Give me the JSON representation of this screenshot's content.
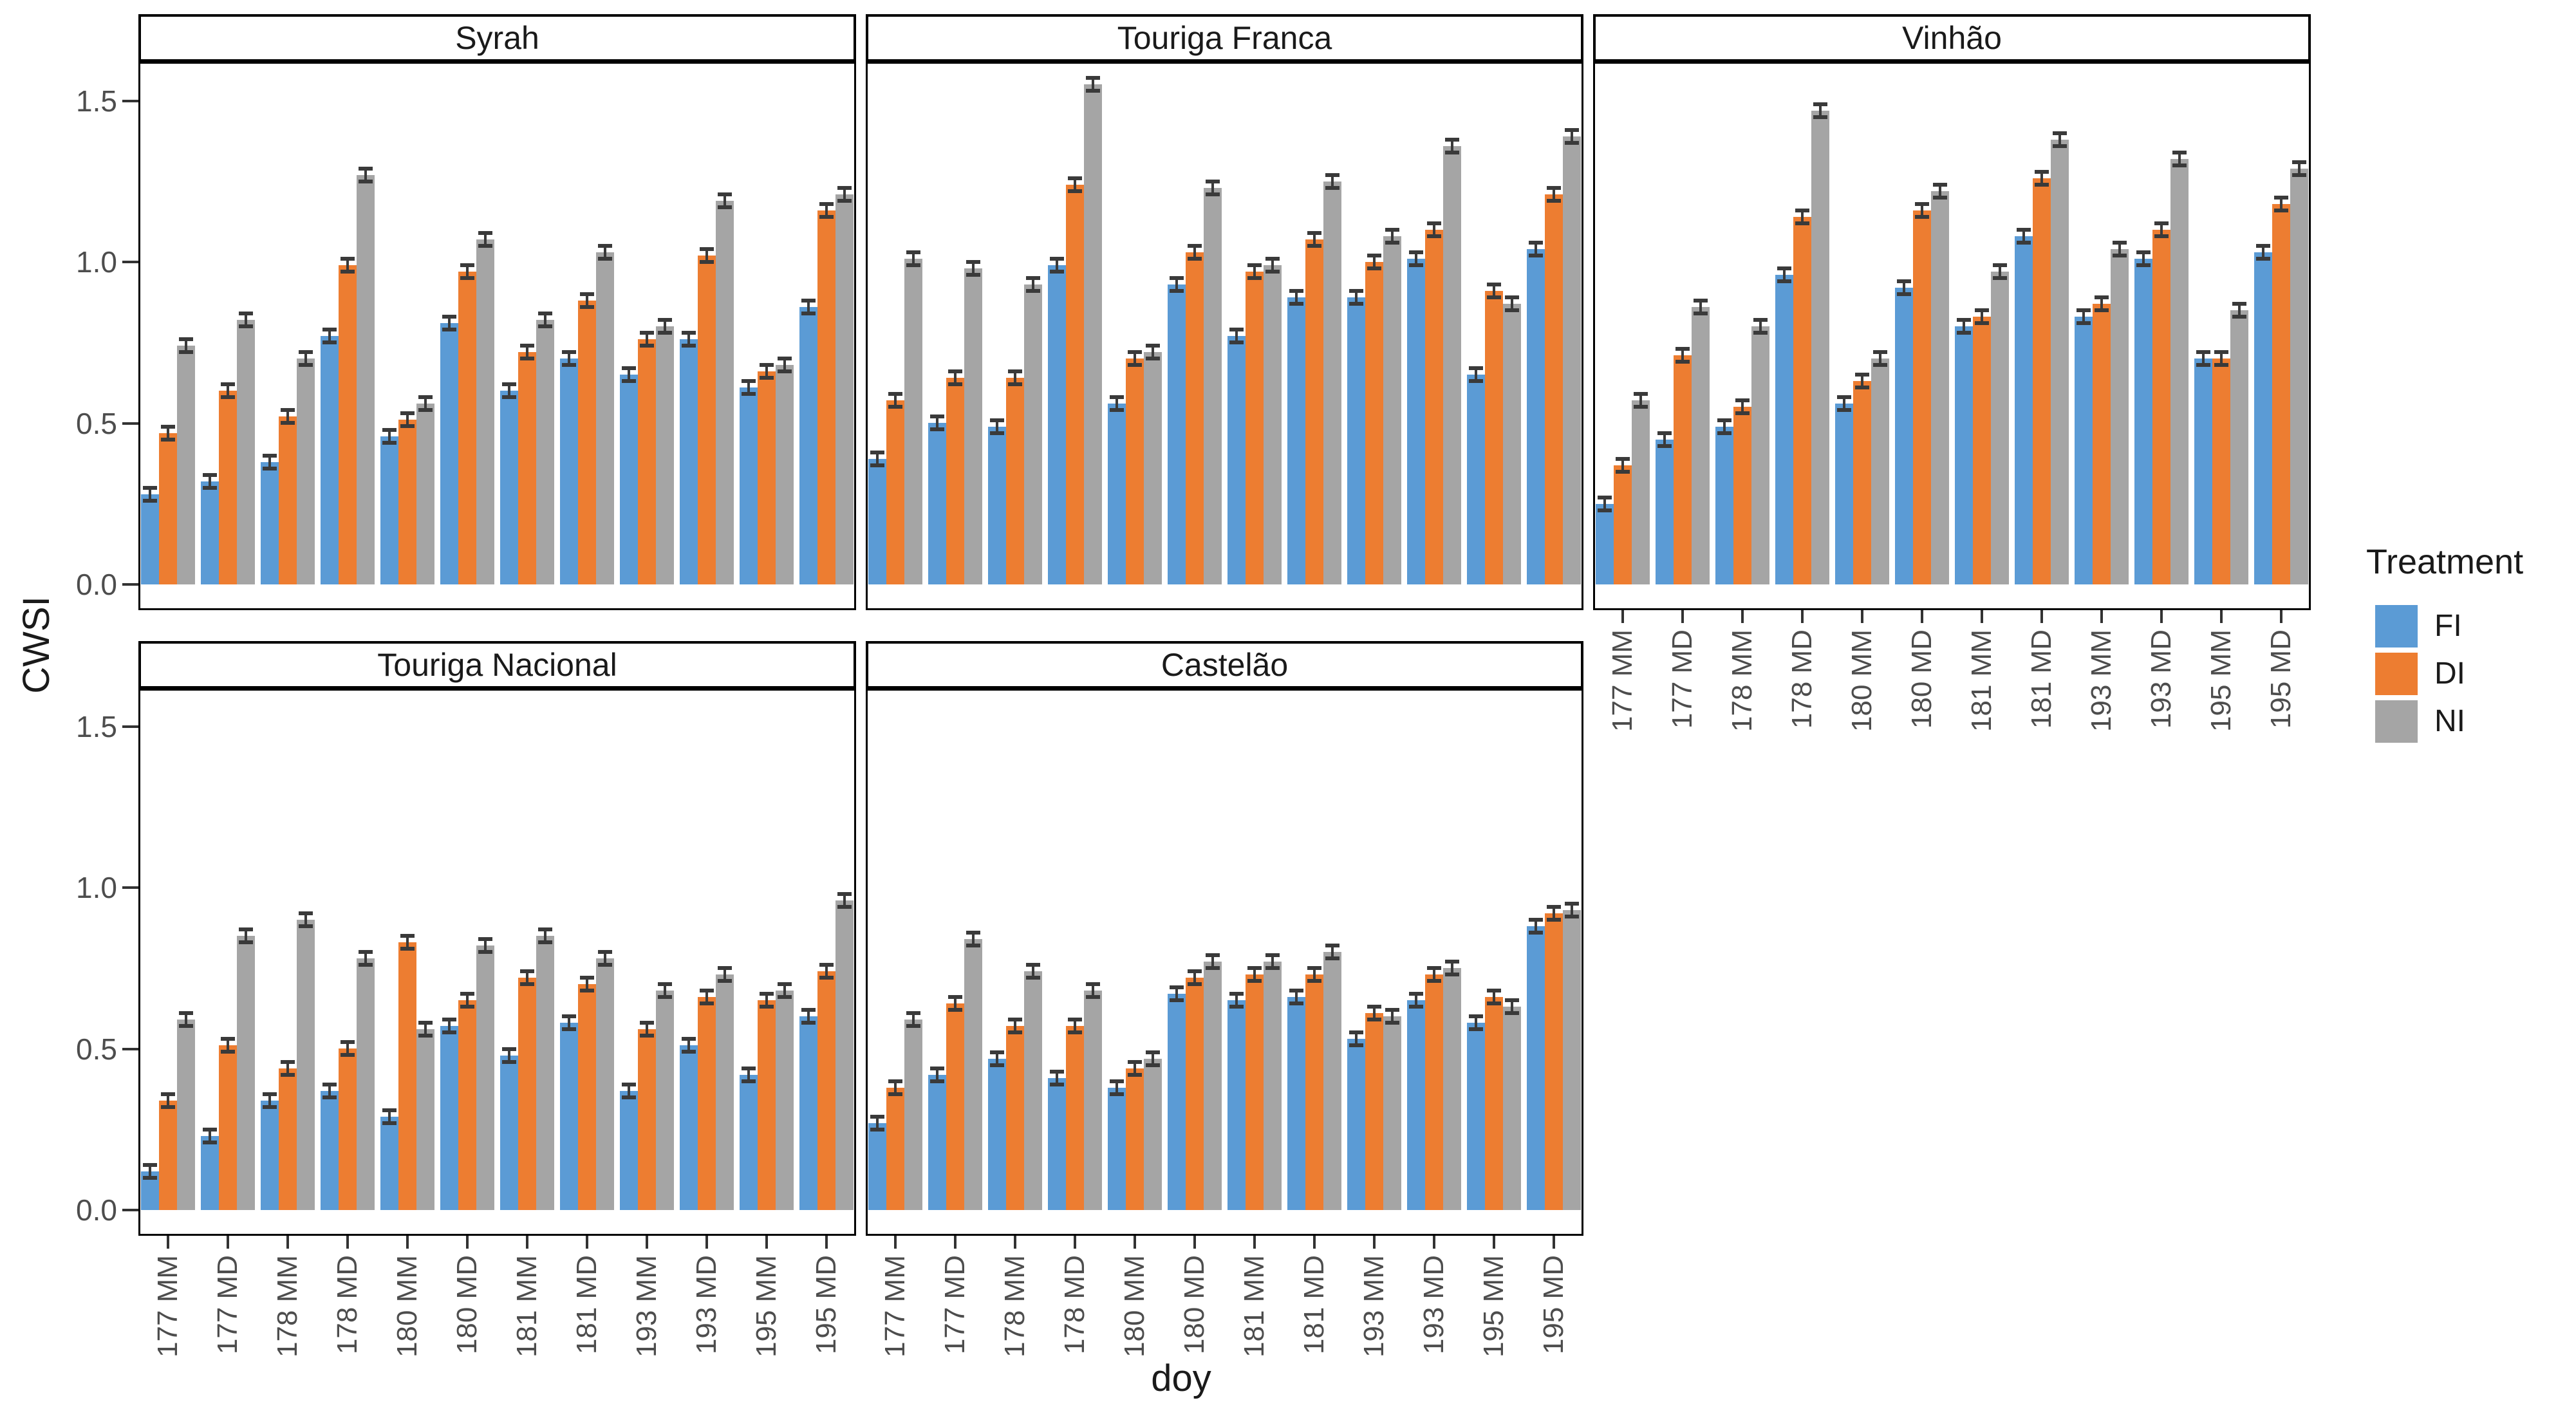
{
  "figure": {
    "y_axis_title": "CWSI",
    "x_axis_title": "doy",
    "legend": {
      "title": "Treatment",
      "entries": [
        {
          "label": "FI",
          "color": "#5B9BD5"
        },
        {
          "label": "DI",
          "color": "#ED7D31"
        },
        {
          "label": "NI",
          "color": "#A5A5A5"
        }
      ]
    }
  },
  "chart_data": {
    "type": "bar",
    "title": "",
    "xlabel": "doy",
    "ylabel": "CWSI",
    "facet_variable": "variety",
    "legend_title": "Treatment",
    "legend_position": "right",
    "grid": false,
    "ylim": [
      0,
      1.65
    ],
    "ytick_values": [
      0.0,
      0.5,
      1.0,
      1.5
    ],
    "ytick_labels": [
      "0.0",
      "0.5",
      "1.0",
      "1.5"
    ],
    "categories": [
      "177 MM",
      "177 MD",
      "178 MM",
      "178 MD",
      "180 MM",
      "180 MD",
      "181 MM",
      "181 MD",
      "193 MM",
      "193 MD",
      "195 MM",
      "195 MD"
    ],
    "series_names": [
      "FI",
      "DI",
      "NI"
    ],
    "error_bar_halfwidth": 0.02,
    "facets": [
      {
        "title": "Syrah",
        "series": [
          {
            "name": "FI",
            "values": [
              0.28,
              0.32,
              0.38,
              0.77,
              0.46,
              0.81,
              0.6,
              0.7,
              0.65,
              0.76,
              0.61,
              0.86
            ]
          },
          {
            "name": "DI",
            "values": [
              0.47,
              0.6,
              0.52,
              0.99,
              0.51,
              0.97,
              0.72,
              0.88,
              0.76,
              1.02,
              0.66,
              1.16
            ]
          },
          {
            "name": "NI",
            "values": [
              0.74,
              0.82,
              0.7,
              1.27,
              0.56,
              1.07,
              0.82,
              1.03,
              0.8,
              1.19,
              0.68,
              1.21
            ]
          }
        ]
      },
      {
        "title": "Touriga Franca",
        "series": [
          {
            "name": "FI",
            "values": [
              0.39,
              0.5,
              0.49,
              0.99,
              0.56,
              0.93,
              0.77,
              0.89,
              0.89,
              1.01,
              0.65,
              1.04
            ]
          },
          {
            "name": "DI",
            "values": [
              0.57,
              0.64,
              0.64,
              1.24,
              0.7,
              1.03,
              0.97,
              1.07,
              1.0,
              1.1,
              0.91,
              1.21
            ]
          },
          {
            "name": "NI",
            "values": [
              1.01,
              0.98,
              0.93,
              1.55,
              0.72,
              1.23,
              0.99,
              1.25,
              1.08,
              1.36,
              0.87,
              1.39
            ]
          }
        ]
      },
      {
        "title": "Vinhão",
        "series": [
          {
            "name": "FI",
            "values": [
              0.25,
              0.45,
              0.49,
              0.96,
              0.56,
              0.92,
              0.8,
              1.08,
              0.83,
              1.01,
              0.7,
              1.03
            ]
          },
          {
            "name": "DI",
            "values": [
              0.37,
              0.71,
              0.55,
              1.14,
              0.63,
              1.16,
              0.83,
              1.26,
              0.87,
              1.1,
              0.7,
              1.18
            ]
          },
          {
            "name": "NI",
            "values": [
              0.57,
              0.86,
              0.8,
              1.47,
              0.7,
              1.22,
              0.97,
              1.38,
              1.04,
              1.32,
              0.85,
              1.29
            ]
          }
        ]
      },
      {
        "title": "Touriga Nacional",
        "series": [
          {
            "name": "FI",
            "values": [
              0.12,
              0.23,
              0.34,
              0.37,
              0.29,
              0.57,
              0.48,
              0.58,
              0.37,
              0.51,
              0.42,
              0.6
            ]
          },
          {
            "name": "DI",
            "values": [
              0.34,
              0.51,
              0.44,
              0.5,
              0.83,
              0.65,
              0.72,
              0.7,
              0.56,
              0.66,
              0.65,
              0.74
            ]
          },
          {
            "name": "NI",
            "values": [
              0.59,
              0.85,
              0.9,
              0.78,
              0.56,
              0.82,
              0.85,
              0.78,
              0.68,
              0.73,
              0.68,
              0.96
            ]
          }
        ]
      },
      {
        "title": "Castelão",
        "series": [
          {
            "name": "FI",
            "values": [
              0.27,
              0.42,
              0.47,
              0.41,
              0.38,
              0.67,
              0.65,
              0.66,
              0.53,
              0.65,
              0.58,
              0.88
            ]
          },
          {
            "name": "DI",
            "values": [
              0.38,
              0.64,
              0.57,
              0.57,
              0.44,
              0.72,
              0.73,
              0.73,
              0.61,
              0.73,
              0.66,
              0.92
            ]
          },
          {
            "name": "NI",
            "values": [
              0.59,
              0.84,
              0.74,
              0.68,
              0.47,
              0.77,
              0.77,
              0.8,
              0.6,
              0.75,
              0.63,
              0.93
            ]
          }
        ]
      }
    ]
  }
}
